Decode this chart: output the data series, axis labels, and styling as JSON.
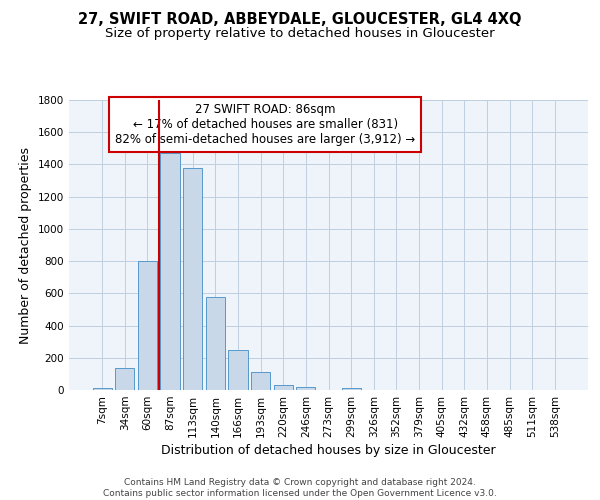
{
  "title": "27, SWIFT ROAD, ABBEYDALE, GLOUCESTER, GL4 4XQ",
  "subtitle": "Size of property relative to detached houses in Gloucester",
  "xlabel": "Distribution of detached houses by size in Gloucester",
  "ylabel": "Number of detached properties",
  "bar_labels": [
    "7sqm",
    "34sqm",
    "60sqm",
    "87sqm",
    "113sqm",
    "140sqm",
    "166sqm",
    "193sqm",
    "220sqm",
    "246sqm",
    "273sqm",
    "299sqm",
    "326sqm",
    "352sqm",
    "379sqm",
    "405sqm",
    "432sqm",
    "458sqm",
    "485sqm",
    "511sqm",
    "538sqm"
  ],
  "bar_values": [
    10,
    135,
    800,
    1470,
    1380,
    575,
    250,
    110,
    30,
    20,
    0,
    15,
    0,
    0,
    0,
    0,
    0,
    0,
    0,
    0,
    0
  ],
  "bar_color": "#c8d8e8",
  "bar_edge_color": "#5599cc",
  "vline_index": 3,
  "vline_color": "#cc0000",
  "annotation_title": "27 SWIFT ROAD: 86sqm",
  "annotation_line1": "← 17% of detached houses are smaller (831)",
  "annotation_line2": "82% of semi-detached houses are larger (3,912) →",
  "annotation_box_color": "#ffffff",
  "annotation_box_edge": "#cc0000",
  "ylim": [
    0,
    1800
  ],
  "yticks": [
    0,
    200,
    400,
    600,
    800,
    1000,
    1200,
    1400,
    1600,
    1800
  ],
  "footer1": "Contains HM Land Registry data © Crown copyright and database right 2024.",
  "footer2": "Contains public sector information licensed under the Open Government Licence v3.0.",
  "title_fontsize": 10.5,
  "subtitle_fontsize": 9.5,
  "axis_label_fontsize": 9,
  "tick_fontsize": 7.5,
  "annotation_fontsize": 8.5,
  "footer_fontsize": 6.5,
  "bg_color": "#eef4fa"
}
